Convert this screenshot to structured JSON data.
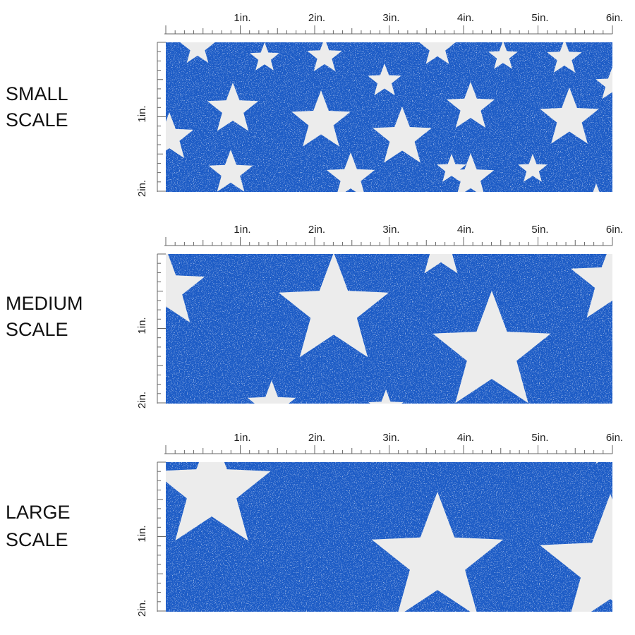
{
  "panels": [
    {
      "label": [
        "SMALL",
        "SCALE"
      ],
      "ruler_x": [
        "1in.",
        "2in.",
        "3in.",
        "4in.",
        "5in.",
        "6in."
      ],
      "ruler_y": [
        "1in.",
        "2in."
      ]
    },
    {
      "label": [
        "MEDIUM",
        "SCALE"
      ],
      "ruler_x": [
        "1in.",
        "2in.",
        "3in.",
        "4in.",
        "5in.",
        "6in."
      ],
      "ruler_y": [
        "1in.",
        "2in."
      ]
    },
    {
      "label": [
        "LARGE",
        "SCALE"
      ],
      "ruler_x": [
        "1in.",
        "2in.",
        "3in.",
        "4in.",
        "5in.",
        "6in."
      ],
      "ruler_y": [
        "1in.",
        "2in."
      ]
    }
  ]
}
